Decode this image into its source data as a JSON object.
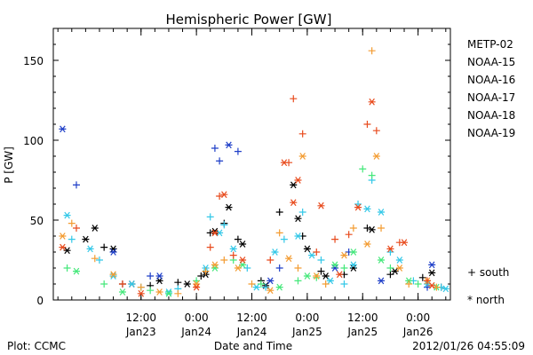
{
  "chart_data": {
    "type": "scatter",
    "title": "Hemispheric Power [GW]",
    "xlabel": "Date and Time",
    "ylabel": "P [GW]",
    "xlim": [
      "2012-01-22T17:00",
      "2012-01-26T07:00"
    ],
    "ylim": [
      0,
      170
    ],
    "yticks": [
      0,
      50,
      100,
      150
    ],
    "xticks": [
      {
        "t": "2012-01-23T12:00",
        "time": "12:00",
        "date": "Jan23"
      },
      {
        "t": "2012-01-24T00:00",
        "time": "0:00",
        "date": "Jan24"
      },
      {
        "t": "2012-01-24T12:00",
        "time": "12:00",
        "date": "Jan24"
      },
      {
        "t": "2012-01-25T00:00",
        "time": "0:00",
        "date": "Jan25"
      },
      {
        "t": "2012-01-25T12:00",
        "time": "12:00",
        "date": "Jan25"
      },
      {
        "t": "2012-01-26T00:00",
        "time": "0:00",
        "date": "Jan26"
      }
    ],
    "grid": false,
    "legend_position": "right",
    "symbol_legend": {
      "south": "+ south",
      "north": "* north"
    },
    "series": [
      {
        "name": "METP-02",
        "color": "#000000",
        "south": [
          [
            "2012-01-23T04:00",
            33
          ],
          [
            "2012-01-23T08:00",
            10
          ],
          [
            "2012-01-23T14:00",
            9
          ],
          [
            "2012-01-23T20:00",
            11
          ],
          [
            "2012-01-24T01:00",
            15
          ],
          [
            "2012-01-24T03:00",
            42
          ],
          [
            "2012-01-24T06:00",
            48
          ],
          [
            "2012-01-24T09:00",
            38
          ],
          [
            "2012-01-24T14:00",
            12
          ],
          [
            "2012-01-24T18:00",
            55
          ],
          [
            "2012-01-24T23:00",
            40
          ],
          [
            "2012-01-25T03:00",
            18
          ],
          [
            "2012-01-25T08:00",
            16
          ],
          [
            "2012-01-25T13:00",
            45
          ],
          [
            "2012-01-25T18:00",
            16
          ],
          [
            "2012-01-26T01:00",
            14
          ],
          [
            "2012-01-26T05:00",
            8
          ]
        ],
        "north": [
          [
            "2012-01-22T20:00",
            31
          ],
          [
            "2012-01-23T00:00",
            38
          ],
          [
            "2012-01-23T02:00",
            45
          ],
          [
            "2012-01-23T06:00",
            32
          ],
          [
            "2012-01-23T10:00",
            10
          ],
          [
            "2012-01-23T16:00",
            12
          ],
          [
            "2012-01-23T22:00",
            10
          ],
          [
            "2012-01-24T02:00",
            16
          ],
          [
            "2012-01-24T04:00",
            43
          ],
          [
            "2012-01-24T07:00",
            58
          ],
          [
            "2012-01-24T10:00",
            35
          ],
          [
            "2012-01-24T15:00",
            9
          ],
          [
            "2012-01-24T21:00",
            72
          ],
          [
            "2012-01-24T22:00",
            51
          ],
          [
            "2012-01-25T00:00",
            32
          ],
          [
            "2012-01-25T04:00",
            15
          ],
          [
            "2012-01-25T10:00",
            20
          ],
          [
            "2012-01-25T14:00",
            44
          ],
          [
            "2012-01-25T19:00",
            18
          ],
          [
            "2012-01-26T03:00",
            17
          ]
        ]
      },
      {
        "name": "NOAA-15",
        "color": "#1f3fc8",
        "south": [
          [
            "2012-01-22T22:00",
            72
          ],
          [
            "2012-01-23T14:00",
            15
          ],
          [
            "2012-01-24T04:00",
            95
          ],
          [
            "2012-01-24T05:00",
            87
          ],
          [
            "2012-01-24T09:00",
            93
          ],
          [
            "2012-01-24T18:00",
            20
          ],
          [
            "2012-01-25T09:00",
            30
          ],
          [
            "2012-01-26T02:00",
            8
          ]
        ],
        "north": [
          [
            "2012-01-22T19:00",
            107
          ],
          [
            "2012-01-23T06:00",
            30
          ],
          [
            "2012-01-23T16:00",
            15
          ],
          [
            "2012-01-24T07:00",
            97
          ],
          [
            "2012-01-24T16:00",
            12
          ],
          [
            "2012-01-25T06:00",
            20
          ],
          [
            "2012-01-25T16:00",
            12
          ],
          [
            "2012-01-26T03:00",
            22
          ]
        ]
      },
      {
        "name": "NOAA-16",
        "color": "#33c8e8",
        "south": [
          [
            "2012-01-22T21:00",
            38
          ],
          [
            "2012-01-23T03:00",
            25
          ],
          [
            "2012-01-23T12:00",
            8
          ],
          [
            "2012-01-23T20:00",
            7
          ],
          [
            "2012-01-24T03:00",
            52
          ],
          [
            "2012-01-24T06:00",
            47
          ],
          [
            "2012-01-24T11:00",
            20
          ],
          [
            "2012-01-24T15:00",
            8
          ],
          [
            "2012-01-24T19:00",
            38
          ],
          [
            "2012-01-24T23:00",
            55
          ],
          [
            "2012-01-25T03:00",
            25
          ],
          [
            "2012-01-25T08:00",
            10
          ],
          [
            "2012-01-25T11:00",
            60
          ],
          [
            "2012-01-25T14:00",
            75
          ],
          [
            "2012-01-25T18:00",
            30
          ],
          [
            "2012-01-25T23:00",
            12
          ],
          [
            "2012-01-26T05:00",
            8
          ]
        ],
        "north": [
          [
            "2012-01-22T20:00",
            53
          ],
          [
            "2012-01-23T01:00",
            32
          ],
          [
            "2012-01-23T06:00",
            15
          ],
          [
            "2012-01-23T10:00",
            10
          ],
          [
            "2012-01-23T18:00",
            5
          ],
          [
            "2012-01-24T02:00",
            20
          ],
          [
            "2012-01-24T05:00",
            42
          ],
          [
            "2012-01-24T08:00",
            32
          ],
          [
            "2012-01-24T13:00",
            8
          ],
          [
            "2012-01-24T17:00",
            30
          ],
          [
            "2012-01-24T22:00",
            40
          ],
          [
            "2012-01-25T01:00",
            28
          ],
          [
            "2012-01-25T05:00",
            12
          ],
          [
            "2012-01-25T10:00",
            22
          ],
          [
            "2012-01-25T13:00",
            57
          ],
          [
            "2012-01-25T16:00",
            55
          ],
          [
            "2012-01-25T20:00",
            25
          ],
          [
            "2012-01-26T02:00",
            10
          ],
          [
            "2012-01-26T06:00",
            7
          ]
        ]
      },
      {
        "name": "NOAA-17",
        "color": "#44e87a",
        "south": [
          [
            "2012-01-22T20:00",
            20
          ],
          [
            "2012-01-23T04:00",
            10
          ],
          [
            "2012-01-23T14:00",
            6
          ],
          [
            "2012-01-24T00:00",
            12
          ],
          [
            "2012-01-24T08:00",
            25
          ],
          [
            "2012-01-24T14:00",
            10
          ],
          [
            "2012-01-24T22:00",
            12
          ],
          [
            "2012-01-25T02:00",
            14
          ],
          [
            "2012-01-25T08:00",
            20
          ],
          [
            "2012-01-25T12:00",
            82
          ],
          [
            "2012-01-25T14:00",
            78
          ],
          [
            "2012-01-25T18:00",
            20
          ],
          [
            "2012-01-26T00:00",
            10
          ]
        ],
        "north": [
          [
            "2012-01-22T22:00",
            18
          ],
          [
            "2012-01-23T08:00",
            5
          ],
          [
            "2012-01-23T18:00",
            4
          ],
          [
            "2012-01-24T04:00",
            20
          ],
          [
            "2012-01-24T10:00",
            22
          ],
          [
            "2012-01-24T18:00",
            8
          ],
          [
            "2012-01-25T00:00",
            15
          ],
          [
            "2012-01-25T06:00",
            22
          ],
          [
            "2012-01-25T10:00",
            30
          ],
          [
            "2012-01-25T16:00",
            25
          ],
          [
            "2012-01-25T22:00",
            12
          ],
          [
            "2012-01-26T04:00",
            8
          ]
        ]
      },
      {
        "name": "NOAA-18",
        "color": "#f39c32",
        "south": [
          [
            "2012-01-22T21:00",
            48
          ],
          [
            "2012-01-23T02:00",
            26
          ],
          [
            "2012-01-23T12:00",
            8
          ],
          [
            "2012-01-23T20:00",
            4
          ],
          [
            "2012-01-24T02:00",
            18
          ],
          [
            "2012-01-24T06:00",
            25
          ],
          [
            "2012-01-24T12:00",
            10
          ],
          [
            "2012-01-24T18:00",
            42
          ],
          [
            "2012-01-24T22:00",
            20
          ],
          [
            "2012-01-25T04:00",
            10
          ],
          [
            "2012-01-25T10:00",
            45
          ],
          [
            "2012-01-25T14:00",
            156
          ],
          [
            "2012-01-25T16:00",
            45
          ],
          [
            "2012-01-25T22:00",
            10
          ],
          [
            "2012-01-26T04:00",
            8
          ]
        ],
        "north": [
          [
            "2012-01-22T19:00",
            40
          ],
          [
            "2012-01-23T06:00",
            16
          ],
          [
            "2012-01-23T16:00",
            5
          ],
          [
            "2012-01-24T00:00",
            10
          ],
          [
            "2012-01-24T04:00",
            22
          ],
          [
            "2012-01-24T09:00",
            20
          ],
          [
            "2012-01-24T16:00",
            6
          ],
          [
            "2012-01-24T20:00",
            26
          ],
          [
            "2012-01-24T23:00",
            90
          ],
          [
            "2012-01-25T02:00",
            15
          ],
          [
            "2012-01-25T08:00",
            28
          ],
          [
            "2012-01-25T13:00",
            35
          ],
          [
            "2012-01-25T15:00",
            90
          ],
          [
            "2012-01-25T20:00",
            20
          ],
          [
            "2012-01-26T02:00",
            12
          ]
        ]
      },
      {
        "name": "NOAA-19",
        "color": "#e84a1c",
        "south": [
          [
            "2012-01-22T22:00",
            45
          ],
          [
            "2012-01-23T08:00",
            10
          ],
          [
            "2012-01-24T03:00",
            33
          ],
          [
            "2012-01-24T05:00",
            65
          ],
          [
            "2012-01-24T08:00",
            28
          ],
          [
            "2012-01-24T16:00",
            25
          ],
          [
            "2012-01-24T20:00",
            86
          ],
          [
            "2012-01-24T21:00",
            126
          ],
          [
            "2012-01-24T23:00",
            104
          ],
          [
            "2012-01-25T02:00",
            30
          ],
          [
            "2012-01-25T06:00",
            38
          ],
          [
            "2012-01-25T09:00",
            41
          ],
          [
            "2012-01-25T13:00",
            110
          ],
          [
            "2012-01-25T15:00",
            106
          ],
          [
            "2012-01-25T20:00",
            36
          ],
          [
            "2012-01-26T02:00",
            12
          ]
        ],
        "north": [
          [
            "2012-01-22T19:00",
            33
          ],
          [
            "2012-01-23T12:00",
            4
          ],
          [
            "2012-01-24T00:00",
            8
          ],
          [
            "2012-01-24T04:00",
            42
          ],
          [
            "2012-01-24T06:00",
            66
          ],
          [
            "2012-01-24T10:00",
            25
          ],
          [
            "2012-01-24T19:00",
            86
          ],
          [
            "2012-01-24T21:00",
            61
          ],
          [
            "2012-01-24T22:00",
            75
          ],
          [
            "2012-01-25T03:00",
            59
          ],
          [
            "2012-01-25T07:00",
            16
          ],
          [
            "2012-01-25T11:00",
            58
          ],
          [
            "2012-01-25T14:00",
            124
          ],
          [
            "2012-01-25T18:00",
            32
          ],
          [
            "2012-01-25T21:00",
            36
          ],
          [
            "2012-01-26T03:00",
            9
          ]
        ]
      }
    ]
  },
  "footer": {
    "left": "Plot: CCMC",
    "center": "Date and Time",
    "right": "2012/01/26 04:55:09"
  }
}
